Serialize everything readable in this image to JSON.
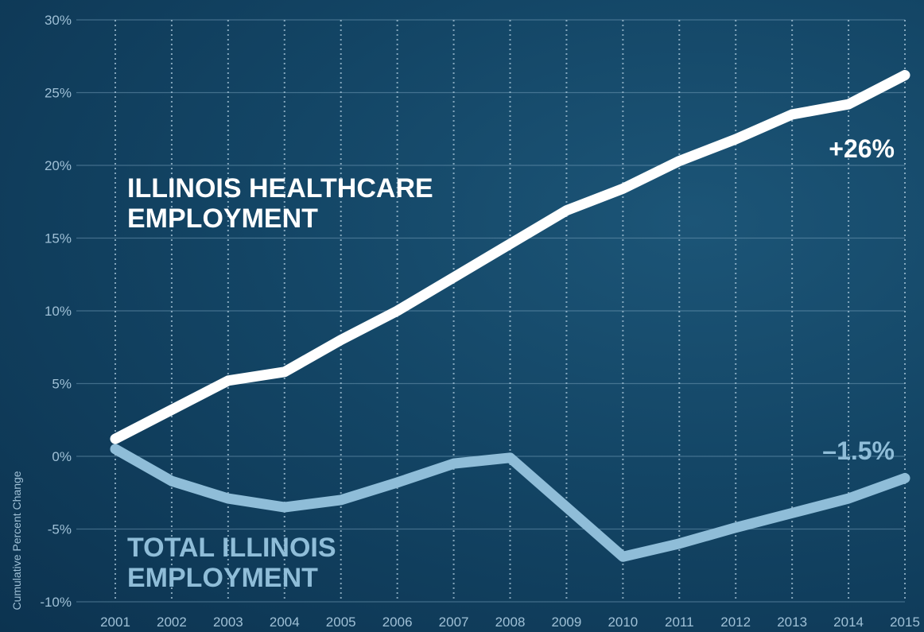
{
  "chart_data": {
    "type": "line",
    "ylabel": "Cumulative Percent Change",
    "ylim": [
      -10,
      30
    ],
    "y_ticks": [
      "30%",
      "25%",
      "20%",
      "15%",
      "10%",
      "5%",
      "0%",
      "-5%",
      "-10%"
    ],
    "y_tick_values": [
      30,
      25,
      20,
      15,
      10,
      5,
      0,
      -5,
      -10
    ],
    "x": [
      "2001",
      "2002",
      "2003",
      "2004",
      "2005",
      "2006",
      "2007",
      "2008",
      "2009",
      "2010",
      "2011",
      "2012",
      "2013",
      "2014",
      "2015"
    ],
    "grid": true,
    "series": [
      {
        "name": "ILLINOIS HEALTHCARE EMPLOYMENT",
        "name_lines": [
          "ILLINOIS HEALTHCARE",
          "EMPLOYMENT"
        ],
        "end_label": "+26%",
        "color": "#ffffff",
        "values": [
          1.2,
          3.2,
          5.2,
          5.8,
          8.0,
          10.0,
          12.3,
          14.6,
          16.9,
          18.4,
          20.3,
          21.8,
          23.5,
          24.2,
          26.2
        ]
      },
      {
        "name": "TOTAL ILLINOIS EMPLOYMENT",
        "name_lines": [
          "TOTAL ILLINOIS",
          "EMPLOYMENT"
        ],
        "end_label": "–1.5%",
        "color": "#8fbdd8",
        "values": [
          0.5,
          -1.7,
          -2.9,
          -3.5,
          -3.0,
          -1.8,
          -0.5,
          -0.1,
          -3.5,
          -6.9,
          -6.0,
          -4.9,
          -3.9,
          -2.9,
          -1.5
        ]
      }
    ]
  }
}
